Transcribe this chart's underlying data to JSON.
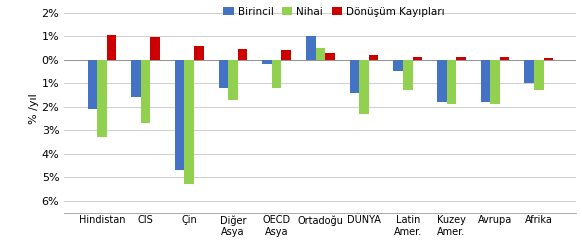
{
  "categories": [
    "Hindistan",
    "CIS",
    "Çin",
    "Diğer\nAsya",
    "OECD\nAsya",
    "Ortadoğu",
    "DÜNYA",
    "Latin\nAmer.",
    "Kuzey\nAmer.",
    "Avrupa",
    "Afrika"
  ],
  "birincil": [
    -2.1,
    -1.6,
    -4.7,
    -1.2,
    -0.2,
    1.0,
    -1.4,
    -0.5,
    -1.8,
    -1.8,
    -1.0
  ],
  "nihai": [
    -3.3,
    -2.7,
    -5.3,
    -1.7,
    -1.2,
    0.5,
    -2.3,
    -1.3,
    -1.9,
    -1.9,
    -1.3
  ],
  "donusum": [
    1.05,
    0.95,
    0.6,
    0.45,
    0.42,
    0.3,
    0.2,
    0.12,
    0.12,
    0.1,
    0.05
  ],
  "bar_colors": [
    "#4472c4",
    "#92d050",
    "#cc0000"
  ],
  "legend_labels": [
    "Birincil",
    "Nihai",
    "Dönüşüm Kayıpları"
  ],
  "ylabel": "% /yıl",
  "ylim": [
    -6.5,
    2.3
  ],
  "ytick_values": [
    2,
    1,
    0,
    -1,
    -2,
    -3,
    -4,
    -5,
    -6
  ],
  "ytick_labels": [
    "2%",
    "1%",
    "0%",
    "1%",
    "2%",
    "3%",
    "4%",
    "5%",
    "6%"
  ],
  "background_color": "#ffffff",
  "grid_color": "#c8c8c8",
  "bar_width": 0.22
}
